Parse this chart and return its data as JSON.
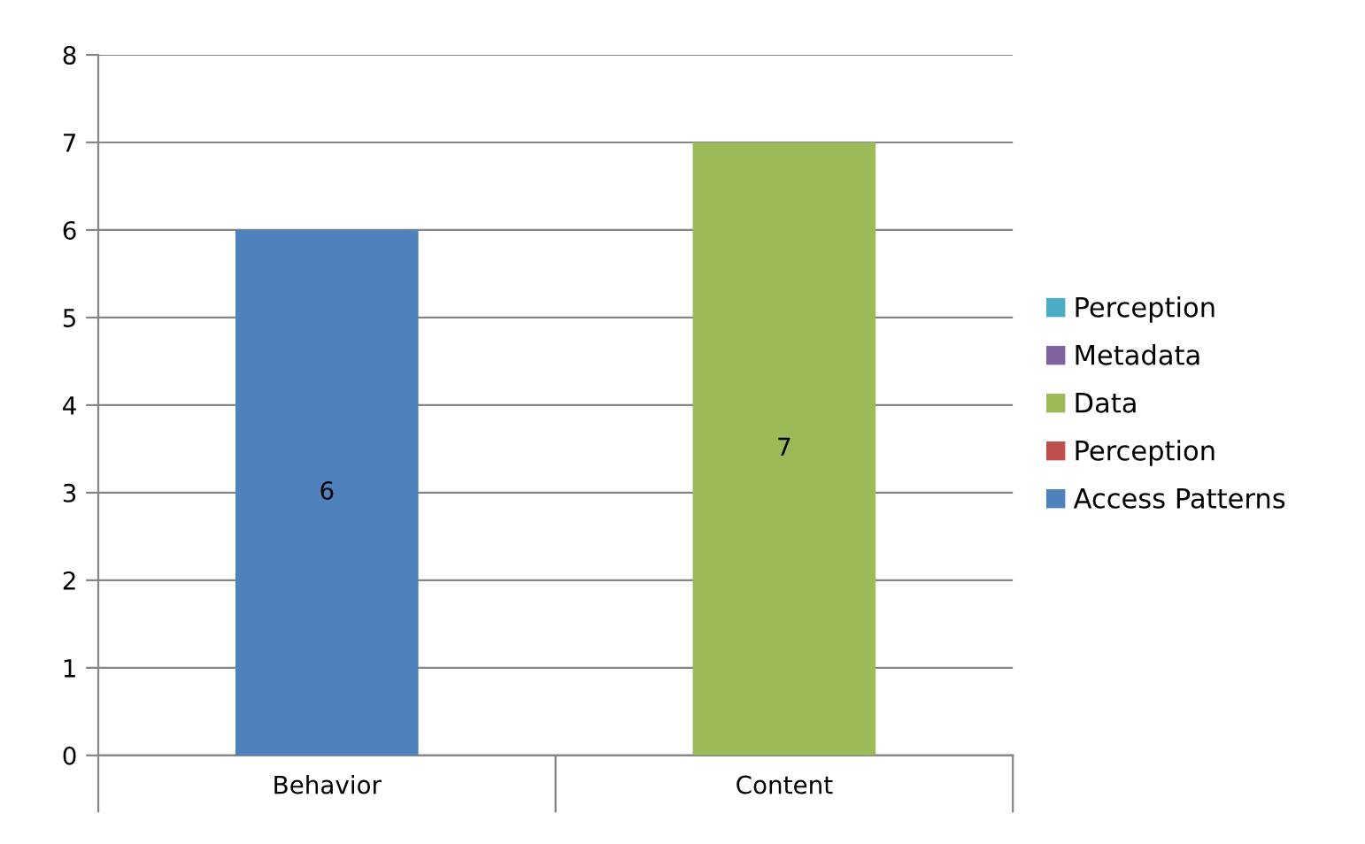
{
  "chart_data": {
    "type": "bar",
    "stacked": true,
    "categories": [
      "Behavior",
      "Content"
    ],
    "series": [
      {
        "name": "Access Patterns",
        "color": "#4f81bd",
        "values": [
          6,
          null
        ],
        "value_labels": [
          "6",
          null
        ]
      },
      {
        "name": "Perception",
        "color": "#c0504d",
        "values": [
          null,
          null
        ]
      },
      {
        "name": "Data",
        "color": "#9bbb59",
        "values": [
          null,
          7
        ],
        "value_labels": [
          null,
          "7"
        ]
      },
      {
        "name": "Metadata",
        "color": "#8064a2",
        "values": [
          null,
          null
        ]
      },
      {
        "name": "Perception",
        "color": "#4bacc6",
        "values": [
          null,
          null
        ]
      }
    ],
    "ylim": [
      0,
      8
    ],
    "yticks": [
      0,
      1,
      2,
      3,
      4,
      5,
      6,
      7,
      8
    ],
    "grid": "y",
    "legend": "right"
  }
}
